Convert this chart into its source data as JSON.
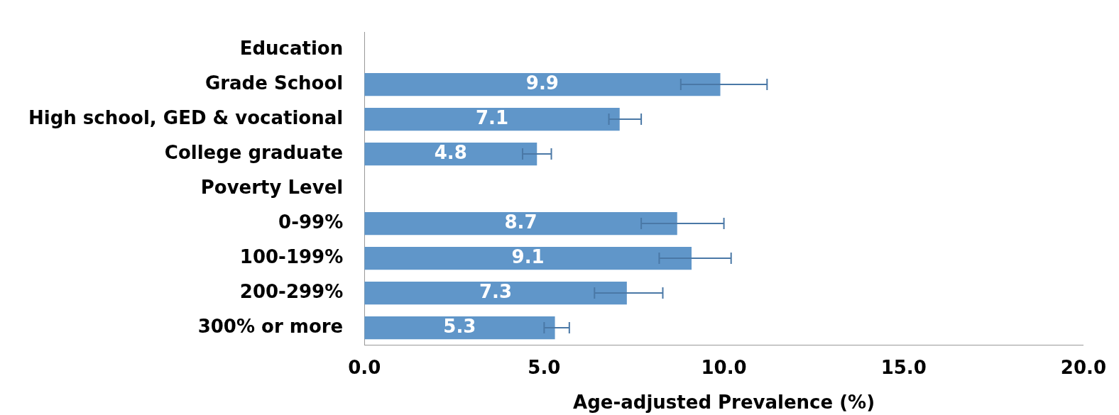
{
  "chart_data": {
    "type": "bar",
    "orientation": "horizontal",
    "xlabel": "Age-adjusted Prevalence (%)",
    "categories": [
      "Education",
      "Grade School",
      "High school, GED & vocational",
      "College graduate",
      "Poverty Level",
      "0-99%",
      "100-199%",
      "200-299%",
      "300% or more"
    ],
    "values": [
      null,
      9.9,
      7.1,
      4.8,
      null,
      8.7,
      9.1,
      7.3,
      5.3
    ],
    "errors": [
      null,
      [
        8.8,
        11.2
      ],
      [
        6.8,
        7.7
      ],
      [
        4.4,
        5.2
      ],
      null,
      [
        7.7,
        10.0
      ],
      [
        8.2,
        10.2
      ],
      [
        6.4,
        8.3
      ],
      [
        5.0,
        5.7
      ]
    ],
    "color": "#6096c9",
    "data_labels": true,
    "grid": false,
    "legend": false,
    "xlim": [
      0,
      20
    ],
    "xticks": [
      {
        "value": 0,
        "label": "0.0"
      },
      {
        "value": 5,
        "label": "5.0"
      },
      {
        "value": 10,
        "label": "10.0"
      },
      {
        "value": 15,
        "label": "15.0"
      },
      {
        "value": 20,
        "label": "20.0"
      }
    ]
  }
}
